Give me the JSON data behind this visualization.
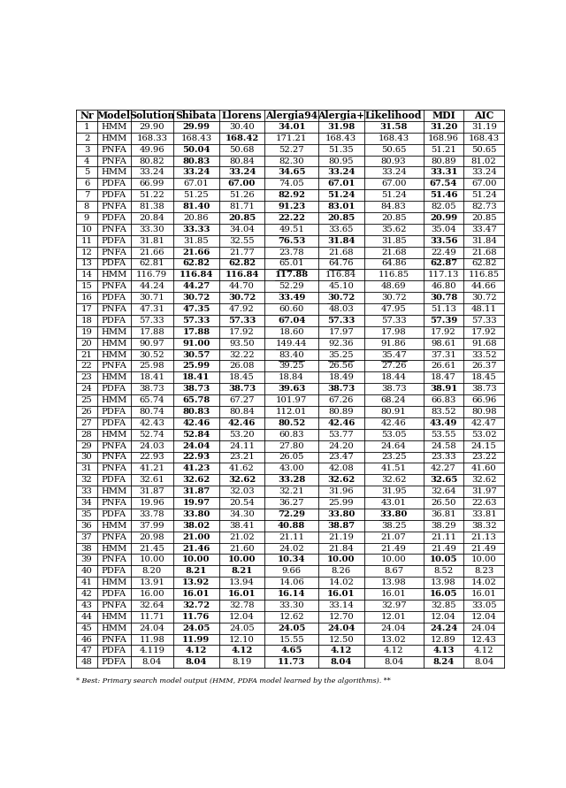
{
  "headers": [
    "Nr",
    "Model",
    "Solution",
    "Shibata",
    "Llorens",
    "Alergia94",
    "Alergia+",
    "Likelihood",
    "MDI",
    "AIC"
  ],
  "rows": [
    [
      1,
      "HMM",
      "29.90",
      "29.99",
      "30.40",
      "34.01",
      "31.98",
      "31.58",
      "31.20",
      "31.19"
    ],
    [
      2,
      "HMM",
      "168.33",
      "168.43",
      "168.42",
      "171.21",
      "168.43",
      "168.43",
      "168.96",
      "168.43"
    ],
    [
      3,
      "PNFA",
      "49.96",
      "50.04",
      "50.68",
      "52.27",
      "51.35",
      "50.65",
      "51.21",
      "50.65"
    ],
    [
      4,
      "PNFA",
      "80.82",
      "80.83",
      "80.84",
      "82.30",
      "80.95",
      "80.93",
      "80.89",
      "81.02"
    ],
    [
      5,
      "HMM",
      "33.24",
      "33.24",
      "33.24",
      "34.65",
      "33.24",
      "33.24",
      "33.31",
      "33.24"
    ],
    [
      6,
      "PDFA",
      "66.99",
      "67.01",
      "67.00",
      "74.05",
      "67.01",
      "67.00",
      "67.54",
      "67.00"
    ],
    [
      7,
      "PDFA",
      "51.22",
      "51.25",
      "51.26",
      "82.92",
      "51.24",
      "51.24",
      "51.46",
      "51.24"
    ],
    [
      8,
      "PNFA",
      "81.38",
      "81.40",
      "81.71",
      "91.23",
      "83.01",
      "84.83",
      "82.05",
      "82.73"
    ],
    [
      9,
      "PDFA",
      "20.84",
      "20.86",
      "20.85",
      "22.22",
      "20.85",
      "20.85",
      "20.99",
      "20.85"
    ],
    [
      10,
      "PNFA",
      "33.30",
      "33.33",
      "34.04",
      "49.51",
      "33.65",
      "35.62",
      "35.04",
      "33.47"
    ],
    [
      11,
      "PDFA",
      "31.81",
      "31.85",
      "32.55",
      "76.53",
      "31.84",
      "31.85",
      "33.56",
      "31.84"
    ],
    [
      12,
      "PNFA",
      "21.66",
      "21.66",
      "21.77",
      "23.78",
      "21.68",
      "21.68",
      "22.49",
      "21.68"
    ],
    [
      13,
      "PDFA",
      "62.81",
      "62.82",
      "62.82",
      "65.01",
      "64.76",
      "64.86",
      "62.87",
      "62.82"
    ],
    [
      14,
      "HMM",
      "116.79",
      "116.84",
      "116.84",
      "117.88",
      "116.84",
      "116.85",
      "117.13",
      "116.85"
    ],
    [
      15,
      "PNFA",
      "44.24",
      "44.27",
      "44.70",
      "52.29",
      "45.10",
      "48.69",
      "46.80",
      "44.66"
    ],
    [
      16,
      "PDFA",
      "30.71",
      "30.72",
      "30.72",
      "33.49",
      "30.72",
      "30.72",
      "30.78",
      "30.72"
    ],
    [
      17,
      "PNFA",
      "47.31",
      "47.35",
      "47.92",
      "60.60",
      "48.03",
      "47.95",
      "51.13",
      "48.11"
    ],
    [
      18,
      "PDFA",
      "57.33",
      "57.33",
      "57.33",
      "67.04",
      "57.33",
      "57.33",
      "57.39",
      "57.33"
    ],
    [
      19,
      "HMM",
      "17.88",
      "17.88",
      "17.92",
      "18.60",
      "17.97",
      "17.98",
      "17.92",
      "17.92"
    ],
    [
      20,
      "HMM",
      "90.97",
      "91.00",
      "93.50",
      "149.44",
      "92.36",
      "91.86",
      "98.61",
      "91.68"
    ],
    [
      21,
      "HMM",
      "30.52",
      "30.57",
      "32.22",
      "83.40",
      "35.25",
      "35.47",
      "37.31",
      "33.52"
    ],
    [
      22,
      "PNFA",
      "25.98",
      "25.99",
      "26.08",
      "39.25",
      "26.56",
      "27.26",
      "26.61",
      "26.37"
    ],
    [
      23,
      "HMM",
      "18.41",
      "18.41",
      "18.45",
      "18.84",
      "18.49",
      "18.44",
      "18.47",
      "18.45"
    ],
    [
      24,
      "PDFA",
      "38.73",
      "38.73",
      "38.73",
      "39.63",
      "38.73",
      "38.73",
      "38.91",
      "38.73"
    ],
    [
      25,
      "HMM",
      "65.74",
      "65.78",
      "67.27",
      "101.97",
      "67.26",
      "68.24",
      "66.83",
      "66.96"
    ],
    [
      26,
      "PDFA",
      "80.74",
      "80.83",
      "80.84",
      "112.01",
      "80.89",
      "80.91",
      "83.52",
      "80.98"
    ],
    [
      27,
      "PDFA",
      "42.43",
      "42.46",
      "42.46",
      "80.52",
      "42.46",
      "42.46",
      "43.49",
      "42.47"
    ],
    [
      28,
      "HMM",
      "52.74",
      "52.84",
      "53.20",
      "60.83",
      "53.77",
      "53.05",
      "53.55",
      "53.02"
    ],
    [
      29,
      "PNFA",
      "24.03",
      "24.04",
      "24.11",
      "27.80",
      "24.20",
      "24.64",
      "24.58",
      "24.15"
    ],
    [
      30,
      "PNFA",
      "22.93",
      "22.93",
      "23.21",
      "26.05",
      "23.47",
      "23.25",
      "23.33",
      "23.22"
    ],
    [
      31,
      "PNFA",
      "41.21",
      "41.23",
      "41.62",
      "43.00",
      "42.08",
      "41.51",
      "42.27",
      "41.60"
    ],
    [
      32,
      "PDFA",
      "32.61",
      "32.62",
      "32.62",
      "33.28",
      "32.62",
      "32.62",
      "32.65",
      "32.62"
    ],
    [
      33,
      "HMM",
      "31.87",
      "31.87",
      "32.03",
      "32.21",
      "31.96",
      "31.95",
      "32.64",
      "31.97"
    ],
    [
      34,
      "PNFA",
      "19.96",
      "19.97",
      "20.54",
      "36.27",
      "25.99",
      "43.01",
      "26.50",
      "22.63"
    ],
    [
      35,
      "PDFA",
      "33.78",
      "33.80",
      "34.30",
      "72.29",
      "33.80",
      "33.80",
      "36.81",
      "33.81"
    ],
    [
      36,
      "HMM",
      "37.99",
      "38.02",
      "38.41",
      "40.88",
      "38.87",
      "38.25",
      "38.29",
      "38.32"
    ],
    [
      37,
      "PNFA",
      "20.98",
      "21.00",
      "21.02",
      "21.11",
      "21.19",
      "21.07",
      "21.11",
      "21.13"
    ],
    [
      38,
      "HMM",
      "21.45",
      "21.46",
      "21.60",
      "24.02",
      "21.84",
      "21.49",
      "21.49",
      "21.49"
    ],
    [
      39,
      "PNFA",
      "10.00",
      "10.00",
      "10.00",
      "10.34",
      "10.00",
      "10.00",
      "10.05",
      "10.00"
    ],
    [
      40,
      "PDFA",
      "8.20",
      "8.21",
      "8.21",
      "9.66",
      "8.26",
      "8.67",
      "8.52",
      "8.23"
    ],
    [
      41,
      "HMM",
      "13.91",
      "13.92",
      "13.94",
      "14.06",
      "14.02",
      "13.98",
      "13.98",
      "14.02"
    ],
    [
      42,
      "PDFA",
      "16.00",
      "16.01",
      "16.01",
      "16.14",
      "16.01",
      "16.01",
      "16.05",
      "16.01"
    ],
    [
      43,
      "PNFA",
      "32.64",
      "32.72",
      "32.78",
      "33.30",
      "33.14",
      "32.97",
      "32.85",
      "33.05"
    ],
    [
      44,
      "HMM",
      "11.71",
      "11.76",
      "12.04",
      "12.62",
      "12.70",
      "12.01",
      "12.04",
      "12.04"
    ],
    [
      45,
      "HMM",
      "24.04",
      "24.05",
      "24.05",
      "24.05",
      "24.04",
      "24.04",
      "24.24",
      "24.04"
    ],
    [
      46,
      "PNFA",
      "11.98",
      "11.99",
      "12.10",
      "15.55",
      "12.50",
      "13.02",
      "12.89",
      "12.43"
    ],
    [
      47,
      "PDFA",
      "4.119",
      "4.12",
      "4.12",
      "4.65",
      "4.12",
      "4.12",
      "4.13",
      "4.12"
    ],
    [
      48,
      "PDFA",
      "8.04",
      "8.04",
      "8.19",
      "11.73",
      "8.04",
      "8.04",
      "8.24",
      "8.04"
    ]
  ],
  "bold": {
    "0": [
      3,
      5,
      6,
      7,
      8
    ],
    "1": [
      4
    ],
    "2": [
      3
    ],
    "3": [
      3
    ],
    "4": [
      3,
      4,
      5,
      6,
      8
    ],
    "5": [
      4,
      6,
      8
    ],
    "6": [
      5,
      6,
      8
    ],
    "7": [
      3,
      5,
      6
    ],
    "8": [
      4,
      5,
      6,
      8
    ],
    "9": [
      3
    ],
    "10": [
      5,
      6,
      8
    ],
    "11": [
      3
    ],
    "12": [
      3,
      4,
      8
    ],
    "13": [
      3,
      4,
      5
    ],
    "14": [
      3
    ],
    "15": [
      3,
      4,
      5,
      6,
      8
    ],
    "16": [
      3
    ],
    "17": [
      3,
      4,
      5,
      6,
      8
    ],
    "18": [
      3
    ],
    "19": [
      3
    ],
    "20": [
      3
    ],
    "21": [
      3
    ],
    "22": [
      3
    ],
    "23": [
      3,
      4,
      5,
      6,
      8
    ],
    "24": [
      3
    ],
    "25": [
      3
    ],
    "26": [
      3,
      4,
      5,
      6,
      8
    ],
    "27": [
      3
    ],
    "28": [
      3
    ],
    "29": [
      3
    ],
    "30": [
      3
    ],
    "31": [
      3,
      4,
      5,
      6,
      8
    ],
    "32": [
      3
    ],
    "33": [
      3
    ],
    "34": [
      3,
      5,
      6,
      7
    ],
    "35": [
      3,
      5,
      6
    ],
    "36": [
      3
    ],
    "37": [
      3
    ],
    "38": [
      3,
      4,
      5,
      6,
      8
    ],
    "39": [
      3,
      4
    ],
    "40": [
      3
    ],
    "41": [
      3,
      4,
      5,
      6,
      8
    ],
    "42": [
      3
    ],
    "43": [
      3
    ],
    "44": [
      3,
      5,
      6,
      8
    ],
    "45": [
      3
    ],
    "46": [
      3,
      4,
      5,
      6,
      8
    ],
    "47": [
      3,
      5,
      6,
      8
    ]
  },
  "underline": {
    "0": [
      5,
      6,
      7,
      8
    ],
    "7": [
      5,
      6
    ],
    "9": [
      6
    ],
    "10": [
      7
    ],
    "12": [
      5,
      6
    ],
    "13": [
      5
    ],
    "14": [
      5
    ],
    "15": [
      6,
      7
    ],
    "16": [
      7
    ],
    "19": [
      5,
      7
    ],
    "20": [
      5,
      6,
      7
    ],
    "21": [
      6
    ],
    "24": [
      5,
      6
    ],
    "25": [
      7
    ],
    "26": [
      7
    ],
    "33": [
      5,
      7
    ],
    "34": [
      5,
      6,
      7
    ],
    "40": [
      5
    ]
  },
  "caption": "* Best: Primary search model output (HMM, PDFA model learned by the algorithms). **"
}
